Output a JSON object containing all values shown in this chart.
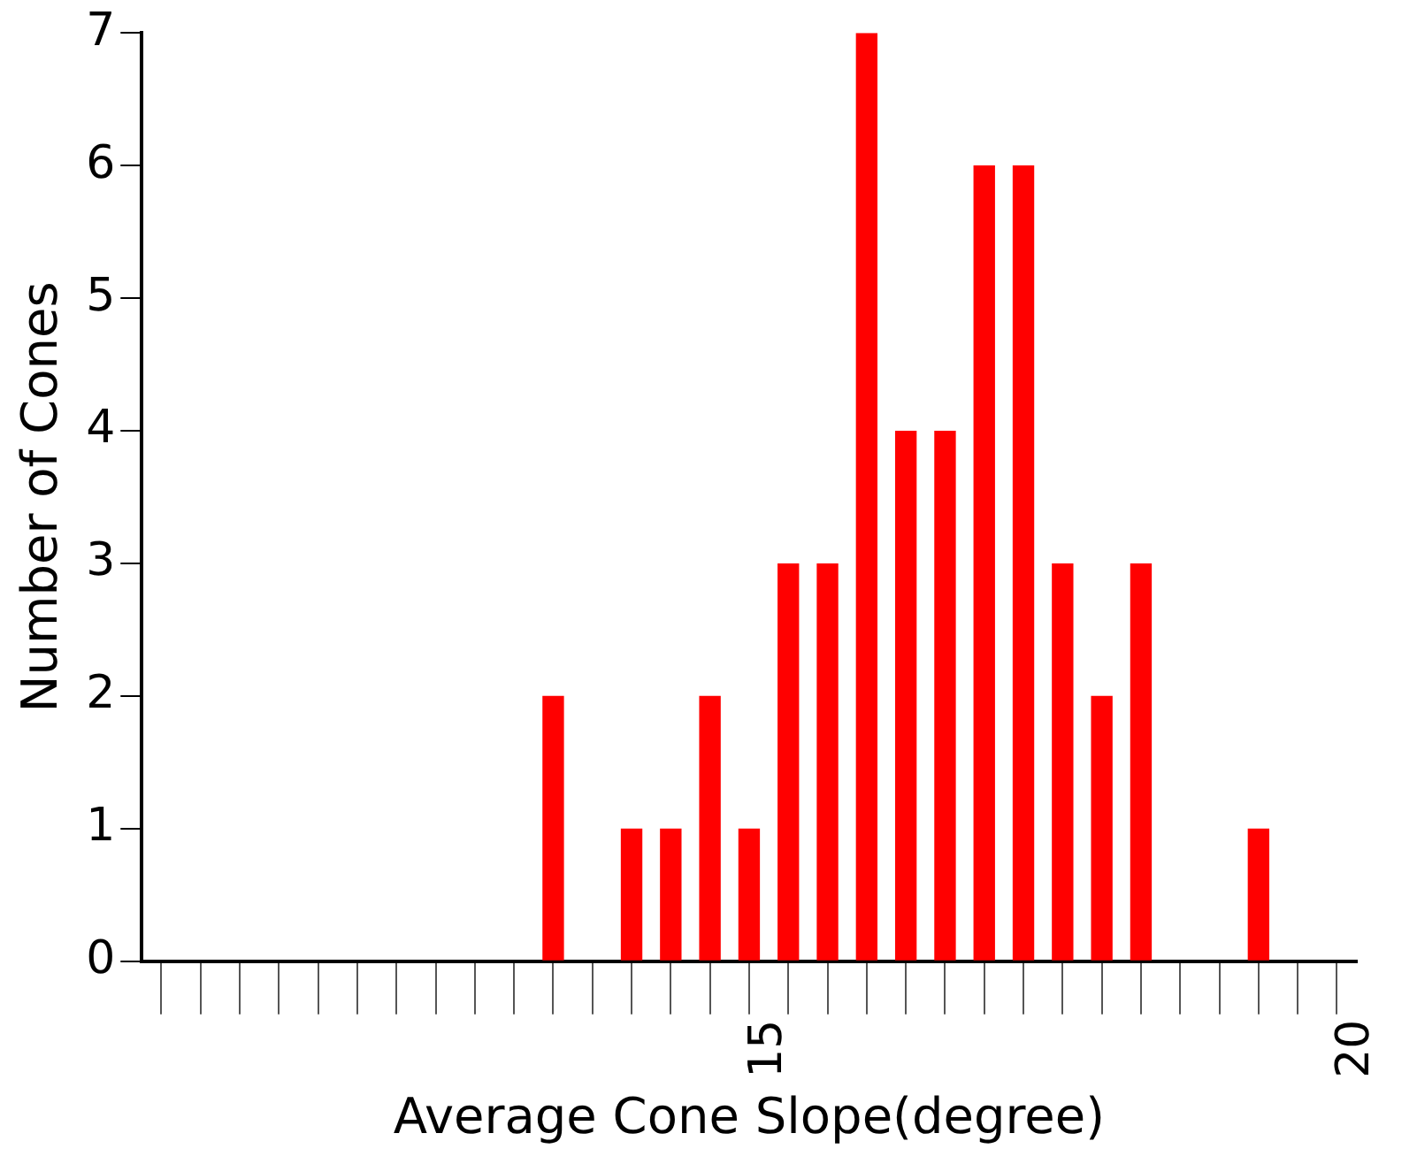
{
  "chart_data": {
    "type": "histogram",
    "xlabel": "Average Cone Slope(degree)",
    "ylabel": "Number of Cones",
    "bins": [
      9.6667,
      10,
      10.3333,
      10.6667,
      11,
      11.3333,
      11.6667,
      12,
      12.3333,
      12.6667,
      13,
      13.3333,
      13.6667,
      14,
      14.3333,
      14.6667,
      15,
      15.3333,
      15.6667,
      16,
      16.3333,
      16.6667,
      17,
      17.3333,
      17.6667,
      18,
      18.3333,
      18.6667,
      19,
      19.3333,
      19.6667,
      20
    ],
    "values": [
      0,
      0,
      0,
      0,
      0,
      0,
      0,
      0,
      0,
      0,
      2,
      0,
      1,
      1,
      2,
      1,
      3,
      3,
      7,
      4,
      4,
      6,
      6,
      3,
      2,
      3,
      0,
      0,
      1,
      0,
      0
    ],
    "color": "#ff0000",
    "xlim": [
      9.6667,
      20
    ],
    "xticks": [
      15,
      20
    ],
    "ylim": [
      0,
      7
    ],
    "yticks": [
      0,
      1,
      2,
      3,
      4,
      5,
      6,
      7
    ],
    "grid": false,
    "legend": false
  }
}
